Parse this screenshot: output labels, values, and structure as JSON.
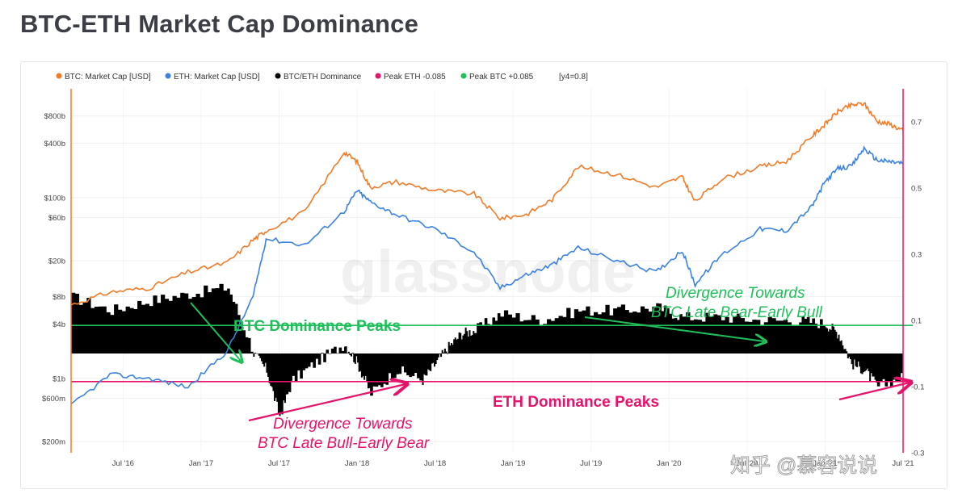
{
  "page": {
    "title": "BTC-ETH Market Cap Dominance"
  },
  "legend": [
    {
      "label": "BTC: Market Cap [USD]",
      "color": "#f07c28"
    },
    {
      "label": "ETH: Market Cap [USD]",
      "color": "#3b82e0"
    },
    {
      "label": "BTC/ETH Dominance",
      "color": "#000000"
    },
    {
      "label": "Peak ETH -0.085",
      "color": "#e6136a"
    },
    {
      "label": "Peak BTC +0.085",
      "color": "#1fbf5a"
    },
    {
      "label": "[y4=0.8]",
      "color": ""
    }
  ],
  "watermark": "glassnode",
  "source_watermark": "知乎 @慕容说说",
  "annotations": {
    "btc_peaks": "BTC Dominance Peaks",
    "eth_peaks": "ETH Dominance Peaks",
    "div_late_bear_1": "Divergence Towards",
    "div_late_bear_2": "BTC Late Bear-Early Bull",
    "div_late_bull_1": "Divergence Towards",
    "div_late_bull_2": "BTC Late Bull-Early Bear"
  },
  "chart_data": {
    "type": "line",
    "title": "BTC-ETH Market Cap Dominance",
    "x_axis": {
      "range": [
        "2016-03",
        "2021-07"
      ],
      "ticks": [
        "Jul '16",
        "Jan '17",
        "Jul '17",
        "Jan '18",
        "Jul '18",
        "Jan '19",
        "Jul '19",
        "Jan '20",
        "Jul '20",
        "Jan '21",
        "Jul '21"
      ]
    },
    "y_axis_left": {
      "scale": "log",
      "unit": "USD",
      "ticks": [
        "$200m",
        "$600m",
        "$1b",
        "$4b",
        "$8b",
        "$20b",
        "$60b",
        "$100b",
        "$400b",
        "$800b"
      ]
    },
    "y_axis_right": {
      "scale": "linear",
      "range": [
        -0.3,
        0.8
      ],
      "ticks": [
        "0.7",
        "0.5",
        "0.3",
        "0.1",
        "-0.1",
        "-0.3"
      ]
    },
    "grid": true,
    "legend_position": "top-left",
    "series": [
      {
        "name": "BTC: Market Cap [USD]",
        "axis": "left",
        "color": "#f07c28",
        "x": [
          "2016-03",
          "2016-06",
          "2016-09",
          "2016-12",
          "2017-03",
          "2017-05",
          "2017-06",
          "2017-09",
          "2017-12",
          "2018-01",
          "2018-02",
          "2018-04",
          "2018-07",
          "2018-10",
          "2018-12",
          "2019-02",
          "2019-04",
          "2019-06",
          "2019-09",
          "2019-12",
          "2020-02",
          "2020-03",
          "2020-05",
          "2020-08",
          "2020-10",
          "2020-12",
          "2021-01",
          "2021-02",
          "2021-03",
          "2021-04",
          "2021-05",
          "2021-06",
          "2021-07"
        ],
        "y": [
          6500000000.0,
          9000000000.0,
          10000000000.0,
          15000000000.0,
          19000000000.0,
          34000000000.0,
          43000000000.0,
          70000000000.0,
          320000000000.0,
          250000000000.0,
          130000000000.0,
          150000000000.0,
          120000000000.0,
          110000000000.0,
          59000000000.0,
          65000000000.0,
          95000000000.0,
          220000000000.0,
          180000000000.0,
          130000000000.0,
          170000000000.0,
          90000000000.0,
          160000000000.0,
          220000000000.0,
          250000000000.0,
          480000000000.0,
          650000000000.0,
          900000000000.0,
          1050000000000.0,
          1100000000000.0,
          700000000000.0,
          650000000000.0,
          550000000000.0
        ]
      },
      {
        "name": "ETH: Market Cap [USD]",
        "axis": "left",
        "color": "#3b82e0",
        "x": [
          "2016-03",
          "2016-06",
          "2016-09",
          "2016-12",
          "2017-03",
          "2017-05",
          "2017-06",
          "2017-09",
          "2017-12",
          "2018-01",
          "2018-02",
          "2018-04",
          "2018-07",
          "2018-10",
          "2018-12",
          "2019-02",
          "2019-04",
          "2019-06",
          "2019-09",
          "2019-12",
          "2020-02",
          "2020-03",
          "2020-05",
          "2020-08",
          "2020-10",
          "2020-12",
          "2021-01",
          "2021-02",
          "2021-03",
          "2021-04",
          "2021-05",
          "2021-06",
          "2021-07"
        ],
        "y": [
          500000000.0,
          1100000000.0,
          1000000000.0,
          800000000.0,
          2000000000.0,
          8000000000.0,
          35000000000.0,
          30000000000.0,
          70000000000.0,
          120000000000.0,
          90000000000.0,
          65000000000.0,
          45000000000.0,
          25000000000.0,
          10000000000.0,
          14000000000.0,
          18000000000.0,
          28000000000.0,
          20000000000.0,
          15000000000.0,
          26000000000.0,
          11000000000.0,
          23000000000.0,
          45000000000.0,
          43000000000.0,
          80000000000.0,
          150000000000.0,
          210000000000.0,
          220000000000.0,
          350000000000.0,
          260000000000.0,
          250000000000.0,
          240000000000.0
        ]
      },
      {
        "name": "BTC/ETH Dominance",
        "axis": "right",
        "type": "area",
        "color": "#000000",
        "x": [
          "2016-03",
          "2016-06",
          "2016-09",
          "2016-12",
          "2017-03",
          "2017-05",
          "2017-06",
          "2017-07",
          "2017-08",
          "2017-10",
          "2017-12",
          "2018-01",
          "2018-02",
          "2018-04",
          "2018-06",
          "2018-07",
          "2018-08",
          "2018-09",
          "2018-10",
          "2018-12",
          "2019-03",
          "2019-06",
          "2019-09",
          "2019-12",
          "2020-02",
          "2020-05",
          "2020-08",
          "2020-11",
          "2021-01",
          "2021-02",
          "2021-03",
          "2021-04",
          "2021-05",
          "2021-07"
        ],
        "y": [
          0.17,
          0.13,
          0.16,
          0.18,
          0.2,
          0.0,
          -0.05,
          -0.19,
          -0.08,
          -0.02,
          0.03,
          -0.03,
          -0.12,
          -0.05,
          -0.08,
          -0.03,
          0.02,
          0.06,
          0.07,
          0.12,
          0.1,
          0.13,
          0.13,
          0.14,
          0.11,
          0.11,
          0.1,
          0.1,
          0.09,
          0.06,
          -0.03,
          -0.05,
          -0.1,
          -0.07
        ]
      },
      {
        "name": "Peak ETH -0.085",
        "axis": "right",
        "type": "reference",
        "color": "#e6136a",
        "value": -0.085
      },
      {
        "name": "Peak BTC +0.085",
        "axis": "right",
        "type": "reference",
        "color": "#1fbf5a",
        "value": 0.085
      }
    ]
  }
}
